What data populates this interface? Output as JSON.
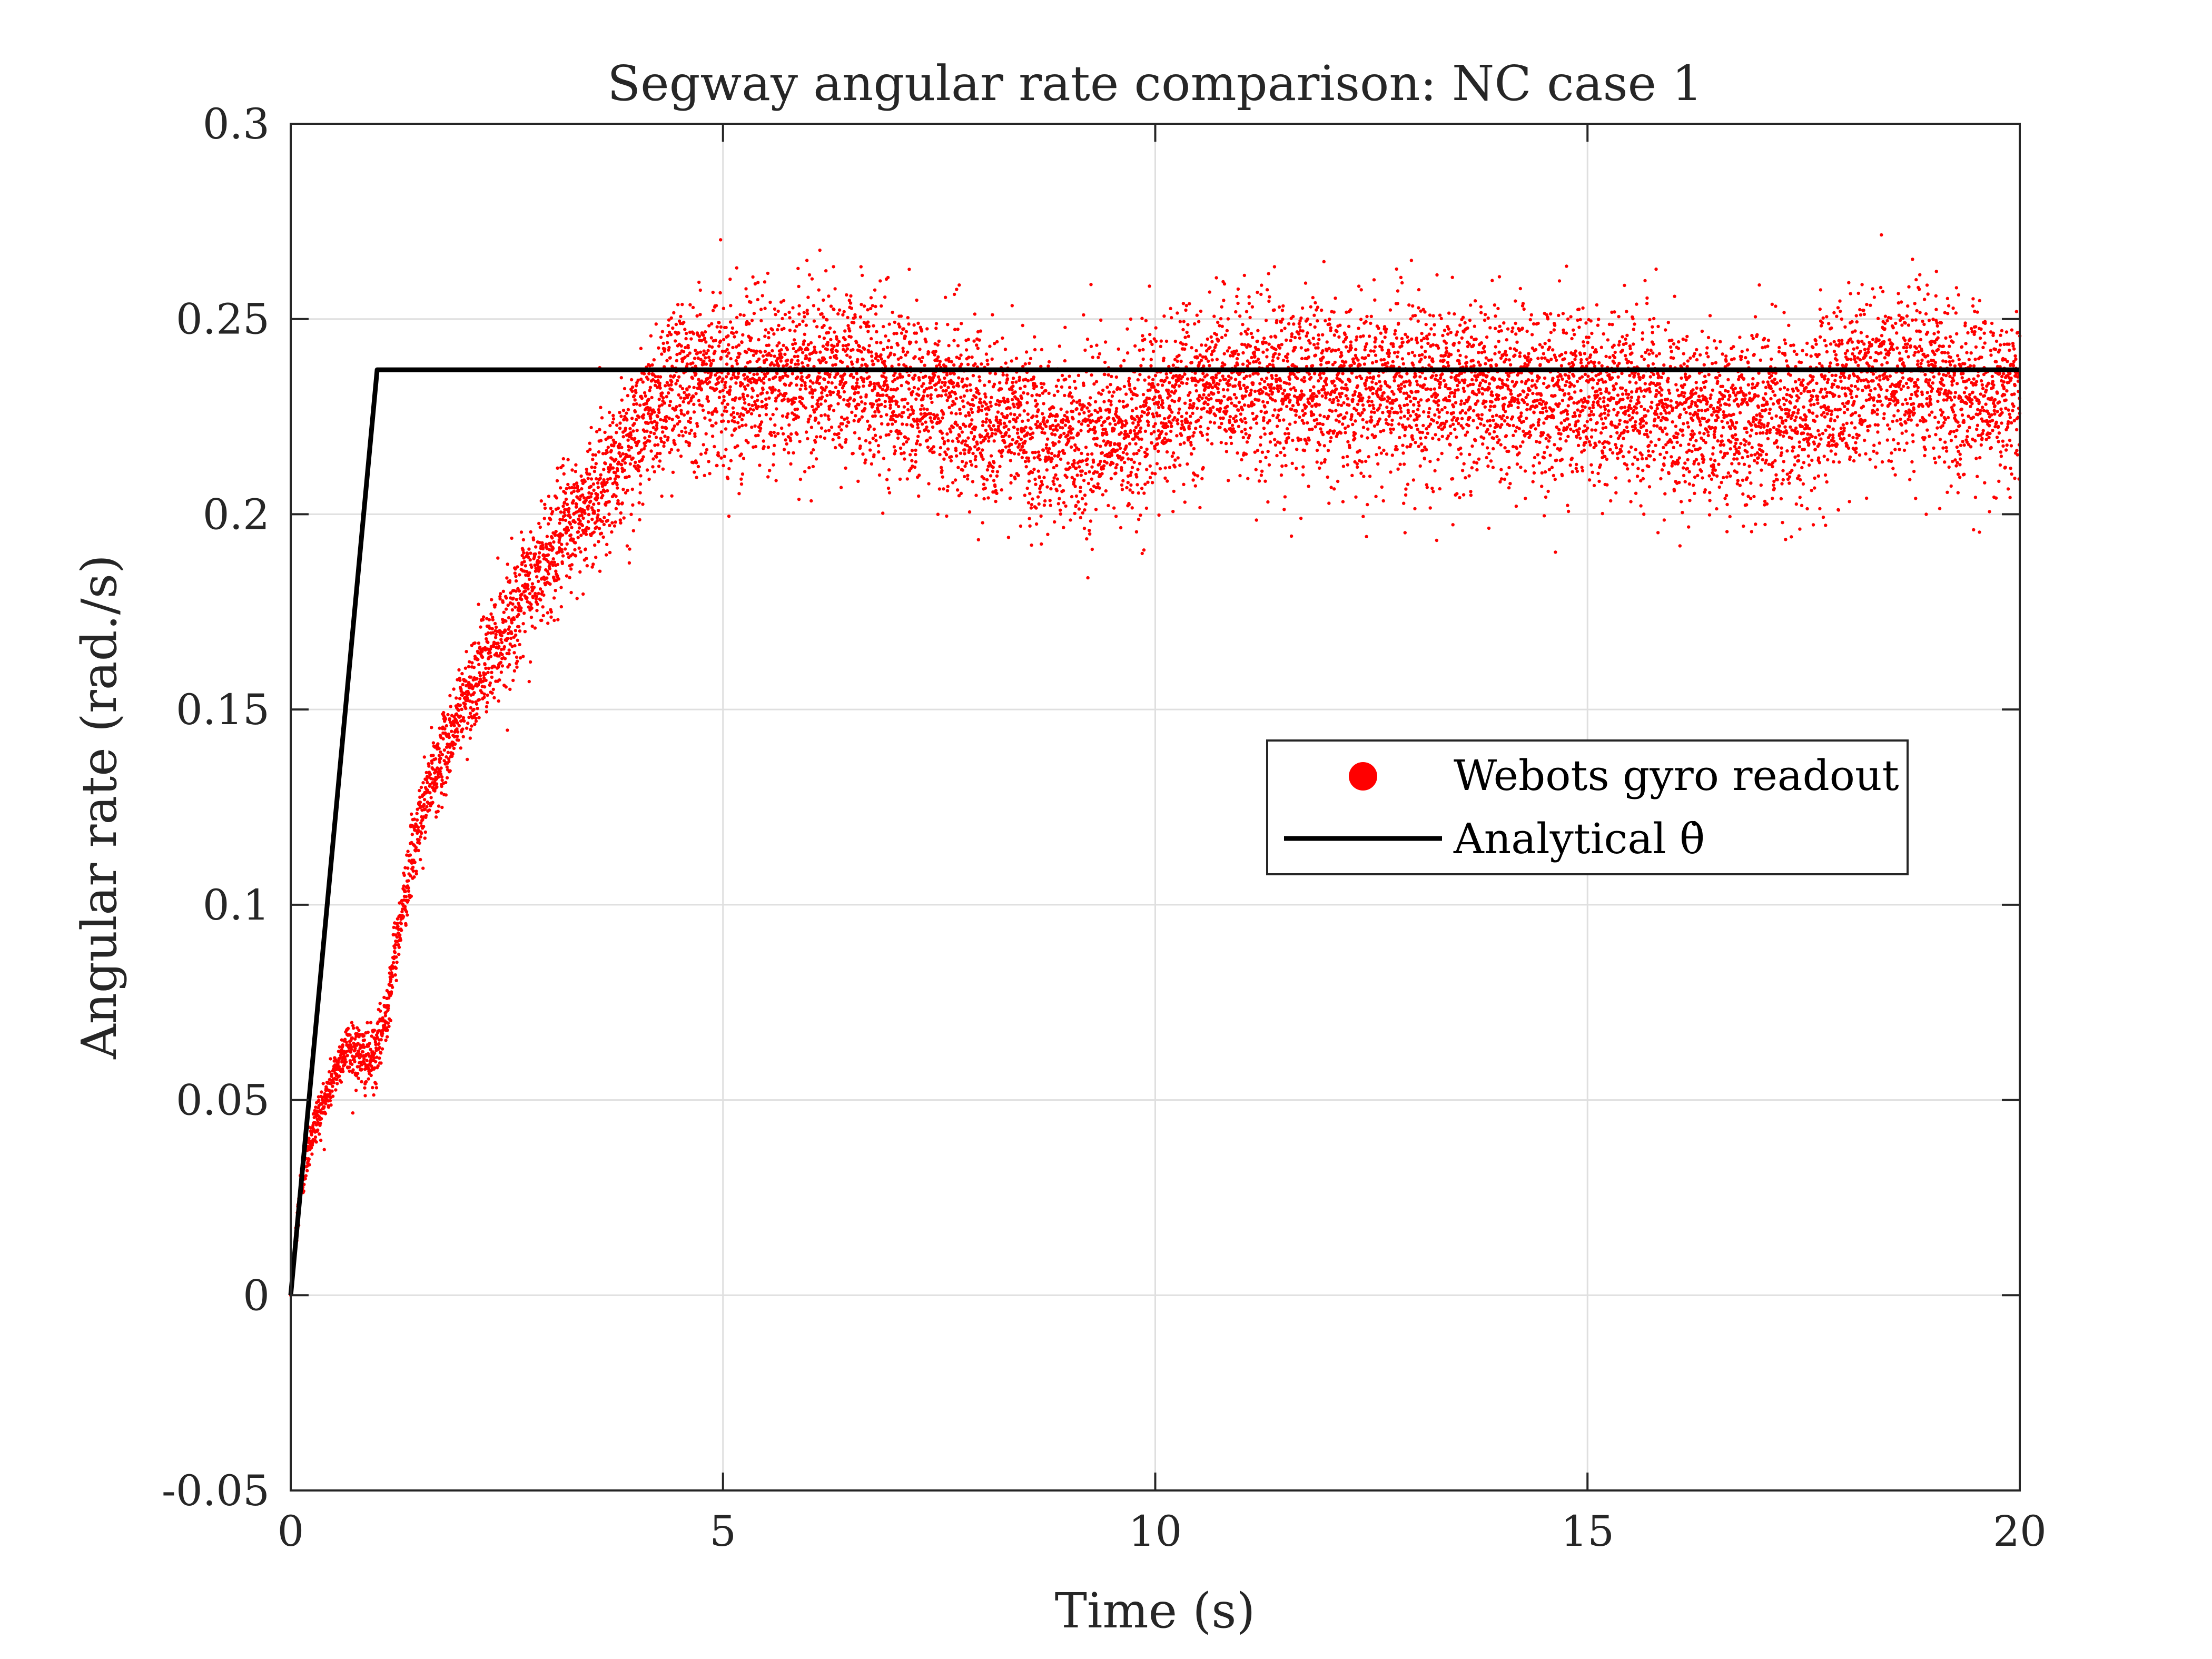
{
  "chart_data": {
    "type": "scatter",
    "title": "Segway angular rate comparison: NC case 1",
    "xlabel": "Time (s)",
    "ylabel": "Angular rate (rad./s)",
    "xlim": [
      0,
      20
    ],
    "ylim": [
      -0.05,
      0.3
    ],
    "xticks": [
      0,
      5,
      10,
      15,
      20
    ],
    "xtick_labels": [
      "0",
      "5",
      "10",
      "15",
      "20"
    ],
    "yticks": [
      -0.05,
      0,
      0.05,
      0.1,
      0.15,
      0.2,
      0.25,
      0.3
    ],
    "ytick_labels": [
      "-0.05",
      "0",
      "0.05",
      "0.1",
      "0.15",
      "0.2",
      "0.25",
      "0.3"
    ],
    "grid": true,
    "legend_position": "right, middle",
    "series": [
      {
        "name": "Webots gyro readout",
        "kind": "scatter",
        "color": "#ff0000",
        "sample_count": 10000,
        "x": [
          0,
          0.1,
          0.2,
          0.3,
          0.4,
          0.5,
          0.6,
          0.7,
          0.8,
          0.9,
          1.0,
          1.1,
          1.2,
          1.3,
          1.4,
          1.5,
          1.6,
          1.8,
          2.0,
          2.2,
          2.4,
          2.6,
          2.8,
          3.0,
          3.2,
          3.4,
          3.6,
          3.8,
          4.0,
          4.2,
          4.5,
          5,
          5.5,
          6,
          6.5,
          7,
          7.5,
          8,
          8.5,
          9,
          9.5,
          10,
          10.5,
          11,
          11.5,
          12,
          12.5,
          13,
          13.5,
          14,
          14.5,
          15,
          15.5,
          16,
          16.5,
          17,
          17.5,
          18,
          18.5,
          19,
          19.5,
          20
        ],
        "y": [
          0,
          0.025,
          0.038,
          0.045,
          0.05,
          0.056,
          0.062,
          0.064,
          0.061,
          0.06,
          0.062,
          0.072,
          0.087,
          0.1,
          0.112,
          0.121,
          0.13,
          0.14,
          0.152,
          0.16,
          0.168,
          0.175,
          0.182,
          0.19,
          0.196,
          0.201,
          0.208,
          0.214,
          0.22,
          0.227,
          0.236,
          0.235,
          0.234,
          0.236,
          0.236,
          0.232,
          0.229,
          0.225,
          0.222,
          0.219,
          0.219,
          0.226,
          0.232,
          0.233,
          0.232,
          0.232,
          0.232,
          0.232,
          0.232,
          0.232,
          0.23,
          0.23,
          0.228,
          0.226,
          0.224,
          0.225,
          0.227,
          0.232,
          0.236,
          0.234,
          0.231,
          0.23
        ],
        "noise_std": [
          0,
          0.003,
          0.003,
          0.003,
          0.003,
          0.003,
          0.003,
          0.004,
          0.004,
          0.004,
          0.004,
          0.004,
          0.004,
          0.004,
          0.005,
          0.005,
          0.005,
          0.005,
          0.006,
          0.006,
          0.007,
          0.007,
          0.008,
          0.008,
          0.008,
          0.008,
          0.009,
          0.009,
          0.01,
          0.01,
          0.011,
          0.011,
          0.011,
          0.011,
          0.011,
          0.011,
          0.011,
          0.011,
          0.011,
          0.011,
          0.011,
          0.011,
          0.011,
          0.011,
          0.011,
          0.011,
          0.011,
          0.011,
          0.011,
          0.011,
          0.011,
          0.011,
          0.011,
          0.011,
          0.011,
          0.011,
          0.011,
          0.011,
          0.011,
          0.011,
          0.011,
          0.011
        ]
      },
      {
        "name": "Analytical θ̇",
        "kind": "line",
        "color": "#000000",
        "x": [
          0,
          1,
          20
        ],
        "y": [
          0,
          0.237,
          0.237
        ]
      }
    ]
  }
}
